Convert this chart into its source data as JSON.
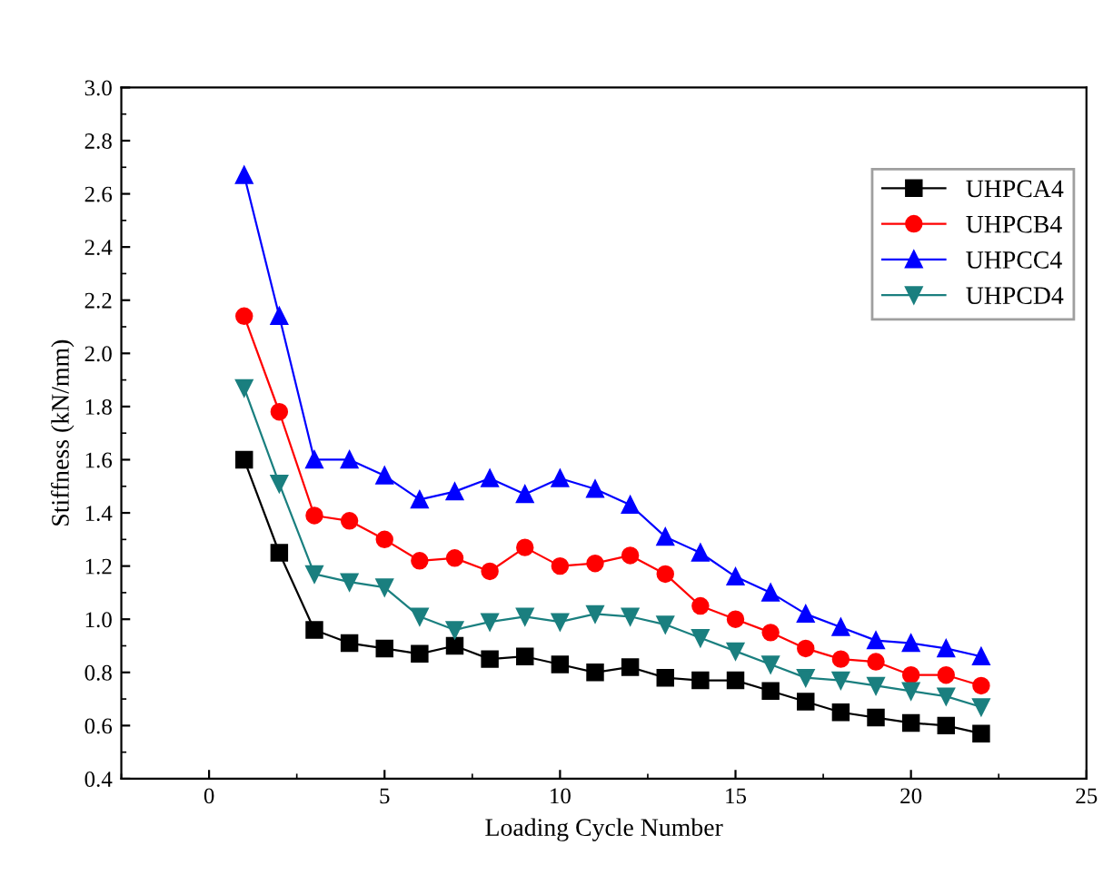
{
  "chart_data": {
    "type": "line",
    "xlabel": "Loading Cycle Number",
    "ylabel": "Stiffness (kN/mm)",
    "x": [
      1,
      2,
      3,
      4,
      5,
      6,
      7,
      8,
      9,
      10,
      11,
      12,
      13,
      14,
      15,
      16,
      17,
      18,
      19,
      20,
      21,
      22
    ],
    "series": [
      {
        "name": "UHPCA4",
        "color": "#000000",
        "marker": "square",
        "values": [
          1.6,
          1.25,
          0.96,
          0.91,
          0.89,
          0.87,
          0.9,
          0.85,
          0.86,
          0.83,
          0.8,
          0.82,
          0.78,
          0.77,
          0.77,
          0.73,
          0.69,
          0.65,
          0.63,
          0.61,
          0.6,
          0.57
        ]
      },
      {
        "name": "UHPCB4",
        "color": "#ff0000",
        "marker": "circle",
        "values": [
          2.14,
          1.78,
          1.39,
          1.37,
          1.3,
          1.22,
          1.23,
          1.18,
          1.27,
          1.2,
          1.21,
          1.24,
          1.17,
          1.05,
          1.0,
          0.95,
          0.89,
          0.85,
          0.84,
          0.79,
          0.79,
          0.75
        ]
      },
      {
        "name": "UHPCC4",
        "color": "#0000ff",
        "marker": "triangle",
        "values": [
          2.67,
          2.14,
          1.6,
          1.6,
          1.54,
          1.45,
          1.48,
          1.53,
          1.47,
          1.53,
          1.49,
          1.43,
          1.31,
          1.25,
          1.16,
          1.1,
          1.02,
          0.97,
          0.92,
          0.91,
          0.89,
          0.86
        ]
      },
      {
        "name": "UHPCD4",
        "color": "#1a7f7f",
        "marker": "triangle_down",
        "values": [
          1.87,
          1.51,
          1.17,
          1.14,
          1.12,
          1.01,
          0.96,
          0.99,
          1.01,
          0.99,
          1.02,
          1.01,
          0.98,
          0.93,
          0.88,
          0.83,
          0.78,
          0.77,
          0.75,
          0.73,
          0.71,
          0.67
        ]
      }
    ],
    "xlim": [
      -2.5,
      25
    ],
    "xticks": [
      0,
      5,
      10,
      15,
      20,
      25
    ],
    "ylim": [
      0.4,
      3.0
    ],
    "yticks": [
      0.4,
      0.6,
      0.8,
      {
        "value": 1,
        "label": "1.0"
      },
      1.2,
      1.4,
      1.6,
      1.8,
      {
        "value": 2,
        "label": "2.0"
      },
      2.2,
      2.4,
      2.6,
      2.8,
      {
        "value": 3,
        "label": "3.0"
      }
    ],
    "grid": false,
    "legend": "top right",
    "line_style": "solid"
  }
}
